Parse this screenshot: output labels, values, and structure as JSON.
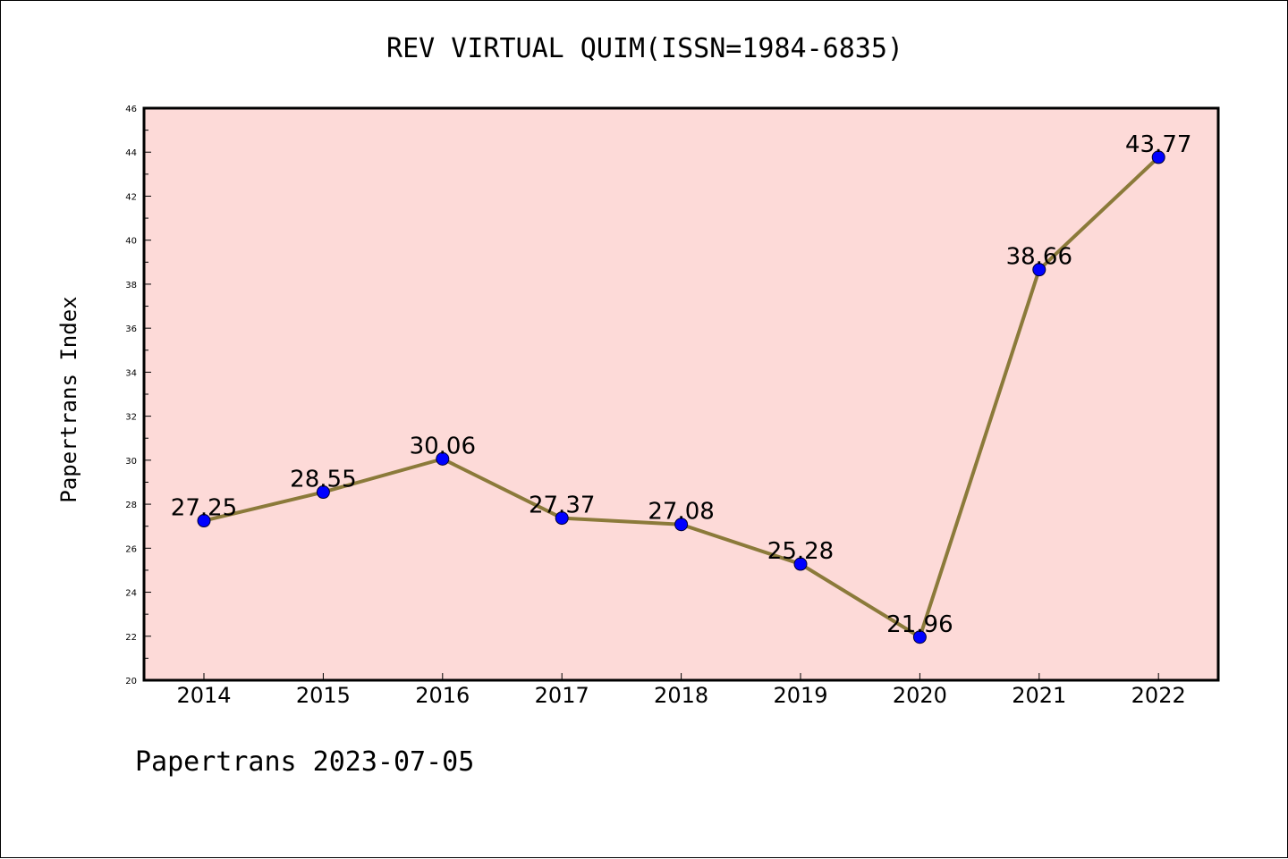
{
  "chart_data": {
    "type": "line",
    "title": "REV VIRTUAL QUIM(ISSN=1984-6835)",
    "xlabel": "",
    "ylabel": "Papertrans Index",
    "categories": [
      "2014",
      "2015",
      "2016",
      "2017",
      "2018",
      "2019",
      "2020",
      "2021",
      "2022"
    ],
    "series": [
      {
        "values": [
          27.25,
          28.55,
          30.06,
          27.37,
          27.08,
          25.28,
          21.96,
          38.66,
          43.77
        ],
        "data_labels": [
          "27.25",
          "28.55",
          "30.06",
          "27.37",
          "27.08",
          "25.28",
          "21.96",
          "38.66",
          "43.77"
        ]
      }
    ],
    "ylim": [
      20,
      46
    ],
    "yticks": [
      20,
      22,
      24,
      26,
      28,
      30,
      32,
      34,
      36,
      38,
      40,
      42,
      44,
      46
    ],
    "grid": false,
    "legend": "none",
    "colors": {
      "plot_background": "#fddad8",
      "line": "#8b7a3a",
      "marker": "#0000ff"
    }
  },
  "footer": "Papertrans 2023-07-05"
}
